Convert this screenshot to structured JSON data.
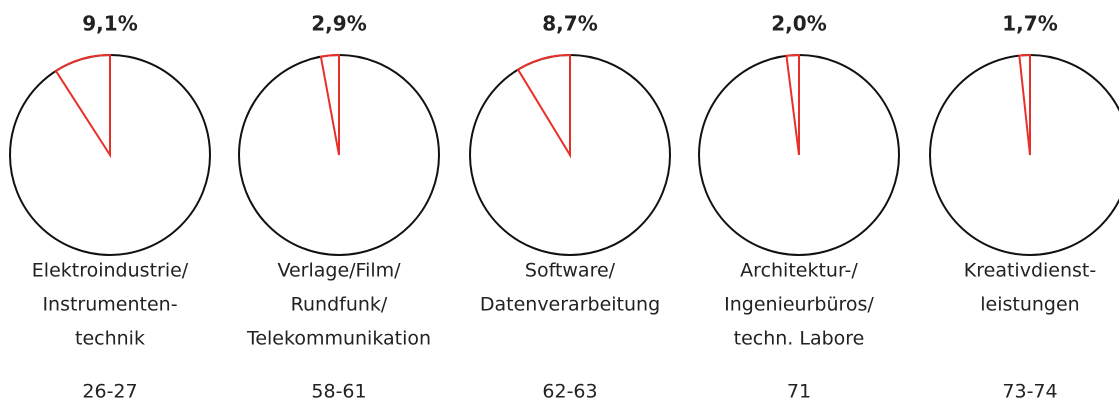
{
  "chart_data": [
    {
      "type": "pie",
      "values": [
        9.1
      ],
      "value_labels": [
        "9,1%"
      ],
      "color": "#e8302a",
      "label": [
        "Elektroindustrie/",
        "Instrumenten-",
        "technik"
      ],
      "code": "26-27"
    },
    {
      "type": "pie",
      "values": [
        2.9
      ],
      "value_labels": [
        "2,9%"
      ],
      "color": "#e8302a",
      "label": [
        "Verlage/Film/",
        "Rundfunk/",
        "Telekommunikation"
      ],
      "code": "58-61"
    },
    {
      "type": "pie",
      "values": [
        8.7
      ],
      "value_labels": [
        "8,7%"
      ],
      "color": "#e8302a",
      "label": [
        "Software/",
        "Datenverarbeitung"
      ],
      "code": "62-63"
    },
    {
      "type": "pie",
      "values": [
        2.0
      ],
      "value_labels": [
        "2,0%"
      ],
      "color": "#e8302a",
      "label": [
        "Architektur-/",
        "Ingenieurbüros/",
        "techn. Labore"
      ],
      "code": "71"
    },
    {
      "type": "pie",
      "values": [
        1.7
      ],
      "value_labels": [
        "1,7%"
      ],
      "color": "#e8302a",
      "label": [
        "Kreativdienst-",
        "leistungen"
      ],
      "code": "73-74"
    }
  ]
}
